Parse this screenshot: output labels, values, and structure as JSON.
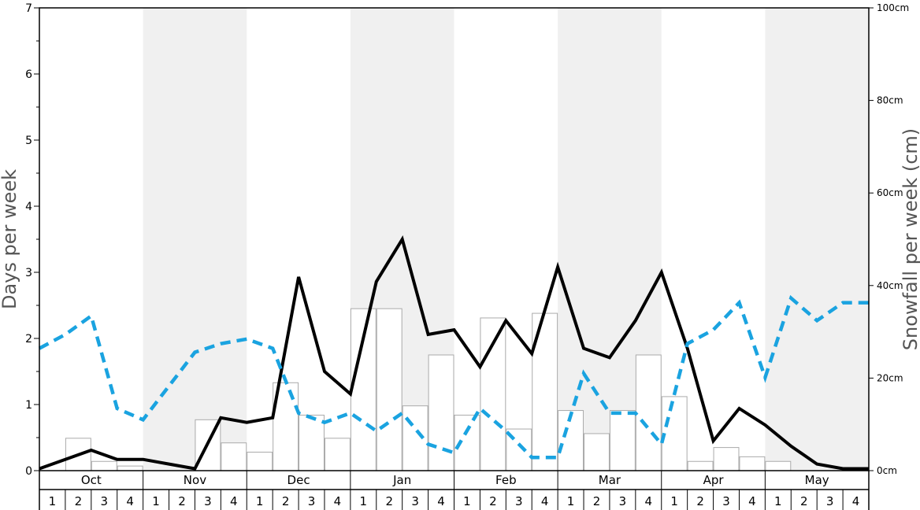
{
  "chart_data": {
    "type": "bar+line",
    "left_axis": {
      "label": "Days per week",
      "range": [
        0,
        7
      ],
      "ticks": [
        "0",
        "1",
        "2",
        "3",
        "4",
        "5",
        "6",
        "7"
      ],
      "minor_step": 0.5
    },
    "right_axis": {
      "label": "Snowfall per week (cm)",
      "range": [
        0,
        100
      ],
      "tick_values": [
        0,
        20,
        40,
        60,
        80,
        100
      ],
      "ticks": [
        "0cm",
        "20cm",
        "40cm",
        "60cm",
        "80cm",
        "100cm"
      ]
    },
    "months": [
      "Oct",
      "Nov",
      "Dec",
      "Jan",
      "Feb",
      "Mar",
      "Apr",
      "May"
    ],
    "weeks_per_month": 4,
    "week_labels": [
      "1",
      "2",
      "3",
      "4"
    ],
    "shaded_months": [
      "Nov",
      "Jan",
      "Mar",
      "May"
    ],
    "colors": {
      "shade": "#f0f0f0",
      "bar_fill": "#ffffff",
      "bar_stroke": "#aaaaaa",
      "solid_line": "#000000",
      "dashed_line": "#1aa3e0"
    },
    "bars_snowfall_cm": [
      0,
      7,
      2,
      1,
      0,
      0,
      11,
      6,
      4,
      19,
      12,
      7,
      35,
      35,
      14,
      25,
      12,
      33,
      9,
      34,
      13,
      8,
      13,
      25,
      16,
      2,
      5,
      3,
      2,
      0,
      0,
      0
    ],
    "series": [
      {
        "style": "solid",
        "axis": "left",
        "values": [
          0.03,
          0.17,
          0.31,
          0.17,
          0.17,
          0.1,
          0.03,
          0.8,
          0.73,
          0.8,
          2.93,
          1.5,
          1.16,
          2.86,
          3.5,
          2.06,
          2.13,
          1.57,
          2.27,
          1.77,
          3.08,
          1.85,
          1.71,
          2.27,
          3.0,
          1.85,
          0.45,
          0.94,
          0.69,
          0.37,
          0.1,
          0.03,
          0.03
        ]
      },
      {
        "style": "dashed",
        "axis": "left",
        "values": [
          1.85,
          2.06,
          2.34,
          0.94,
          0.77,
          1.28,
          1.79,
          1.92,
          1.99,
          1.85,
          0.87,
          0.73,
          0.87,
          0.6,
          0.87,
          0.4,
          0.27,
          0.94,
          0.6,
          0.2,
          0.2,
          1.47,
          0.87,
          0.87,
          0.4,
          1.92,
          2.13,
          2.54,
          1.41,
          2.61,
          2.27,
          2.54,
          2.54
        ]
      }
    ]
  }
}
